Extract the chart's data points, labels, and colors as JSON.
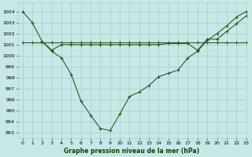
{
  "background_color": "#c8e8e8",
  "grid_color": "#b0d0d0",
  "line_color": "#2d5a1b",
  "title": "Graphe pression niveau de la mer (hPa)",
  "xlim": [
    -0.5,
    23
  ],
  "ylim": [
    992.5,
    1004.8
  ],
  "yticks": [
    993,
    994,
    995,
    996,
    997,
    998,
    999,
    1000,
    1001,
    1002,
    1003,
    1004
  ],
  "xticks": [
    0,
    1,
    2,
    3,
    4,
    5,
    6,
    7,
    8,
    9,
    10,
    11,
    12,
    13,
    14,
    15,
    16,
    17,
    18,
    19,
    20,
    21,
    22,
    23
  ],
  "series1_x": [
    0,
    1,
    2,
    3,
    4,
    5,
    6,
    7,
    8,
    9,
    10,
    11,
    12,
    13,
    14,
    15,
    16,
    17,
    18,
    19,
    20,
    21,
    22,
    23
  ],
  "series1_y": [
    1004.0,
    1003.0,
    1001.3,
    1000.4,
    999.8,
    998.3,
    995.9,
    994.6,
    993.4,
    993.2,
    994.7,
    996.3,
    996.7,
    997.3,
    998.1,
    998.4,
    998.7,
    999.8,
    1000.4,
    1001.4,
    1002.0,
    1002.7,
    1003.5,
    1004.0
  ],
  "series2_x": [
    0,
    1,
    2,
    3,
    4,
    5,
    6,
    7,
    8,
    9,
    10,
    11,
    12,
    13,
    14,
    15,
    16,
    17,
    18,
    19,
    20,
    21,
    22,
    23
  ],
  "series2_y": [
    1001.2,
    1001.2,
    1001.2,
    1001.2,
    1001.2,
    1001.2,
    1001.2,
    1001.2,
    1001.2,
    1001.2,
    1001.2,
    1001.2,
    1001.2,
    1001.2,
    1001.2,
    1001.2,
    1001.2,
    1001.2,
    1001.2,
    1001.2,
    1001.2,
    1001.2,
    1001.2,
    1001.2
  ],
  "series3_x": [
    2,
    3,
    4,
    5,
    6,
    7,
    8,
    9,
    10,
    11,
    12,
    13,
    14,
    15,
    16,
    17,
    18,
    19,
    20,
    21,
    22,
    23
  ],
  "series3_y": [
    1001.3,
    1000.5,
    1001.0,
    1001.0,
    1001.0,
    1001.0,
    1001.0,
    1001.0,
    1001.0,
    1001.0,
    1001.0,
    1001.0,
    1001.0,
    1001.1,
    1001.1,
    1001.1,
    1000.5,
    1001.5,
    1001.5,
    1002.2,
    1002.9,
    1003.6
  ]
}
